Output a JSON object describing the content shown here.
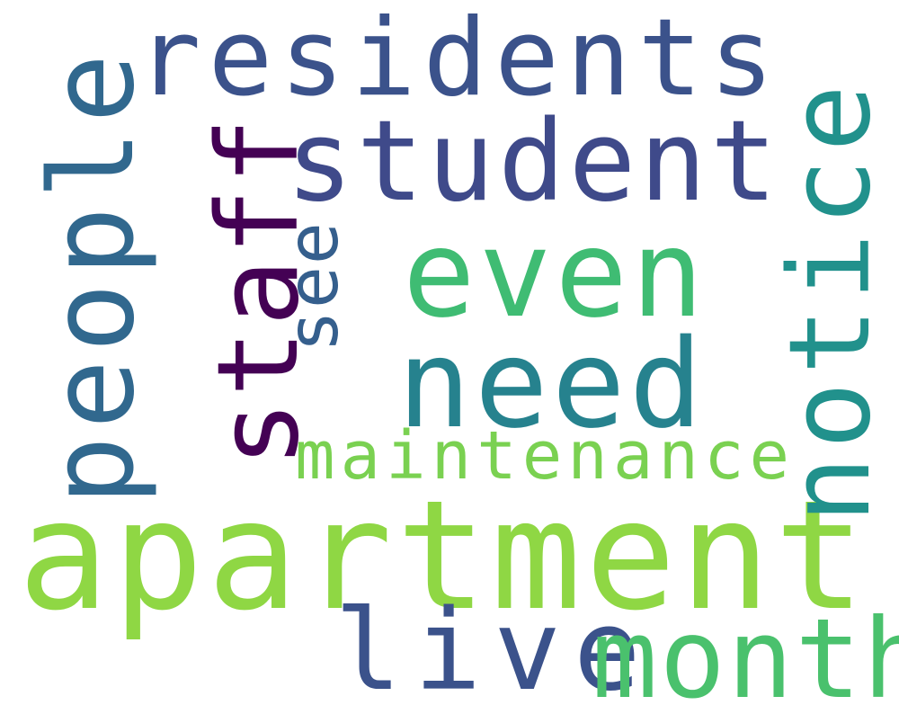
{
  "word_cloud": {
    "words": [
      {
        "text": "residents",
        "color": "#3b528b"
      },
      {
        "text": "student",
        "color": "#3f4a8a"
      },
      {
        "text": "even",
        "color": "#3fbc73"
      },
      {
        "text": "need",
        "color": "#26828e"
      },
      {
        "text": "maintenance",
        "color": "#7ad151"
      },
      {
        "text": "apartment",
        "color": "#8fd744"
      },
      {
        "text": "live",
        "color": "#3b528b"
      },
      {
        "text": "month",
        "color": "#4ac16d"
      },
      {
        "text": "people",
        "color": "#31688e"
      },
      {
        "text": "staff",
        "color": "#440154"
      },
      {
        "text": "see",
        "color": "#355f8d"
      },
      {
        "text": "notice",
        "color": "#21918c"
      }
    ]
  }
}
